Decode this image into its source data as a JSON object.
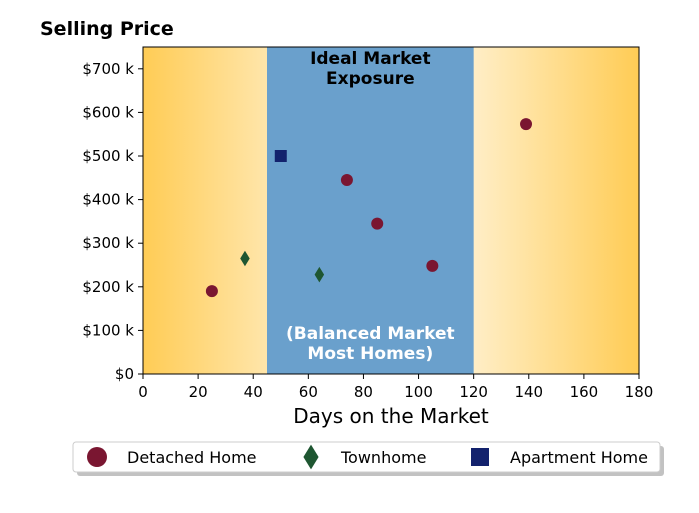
{
  "chart_data": {
    "type": "scatter",
    "title": "Selling Price",
    "xlabel": "Days on the Market",
    "ylabel": "",
    "xlim": [
      0,
      180
    ],
    "ylim": [
      0,
      750000
    ],
    "x_ticks": [
      0,
      20,
      40,
      60,
      80,
      100,
      120,
      140,
      160,
      180
    ],
    "y_ticks": [
      0,
      100000,
      200000,
      300000,
      400000,
      500000,
      600000,
      700000
    ],
    "y_tick_labels": [
      "$0",
      "$100 k",
      "$200 k",
      "$300 k",
      "$400 k",
      "$500 k",
      "$600 k",
      "$700 k"
    ],
    "grid": false,
    "legend_position": "bottom",
    "shaded_region": {
      "x_range": [
        45,
        120
      ],
      "color": "#6aa0cc",
      "label_top": [
        "Ideal Market",
        "Exposure"
      ],
      "label_bottom": [
        "(Balanced Market",
        "Most Homes)"
      ]
    },
    "background_gradient": {
      "edge_color": "#ffcc55",
      "center_color": "#ffffff"
    },
    "series": [
      {
        "name": "Detached Home",
        "marker": "circle",
        "color": "#7a1631",
        "points": [
          [
            25,
            190000
          ],
          [
            74,
            445000
          ],
          [
            85,
            345000
          ],
          [
            105,
            248000
          ],
          [
            139,
            573000
          ]
        ]
      },
      {
        "name": "Townhome",
        "marker": "diamond",
        "color": "#1e5631",
        "points": [
          [
            37,
            265000
          ],
          [
            64,
            228000
          ]
        ]
      },
      {
        "name": "Apartment Home",
        "marker": "square",
        "color": "#13226d",
        "points": [
          [
            50,
            500000
          ]
        ]
      }
    ]
  }
}
